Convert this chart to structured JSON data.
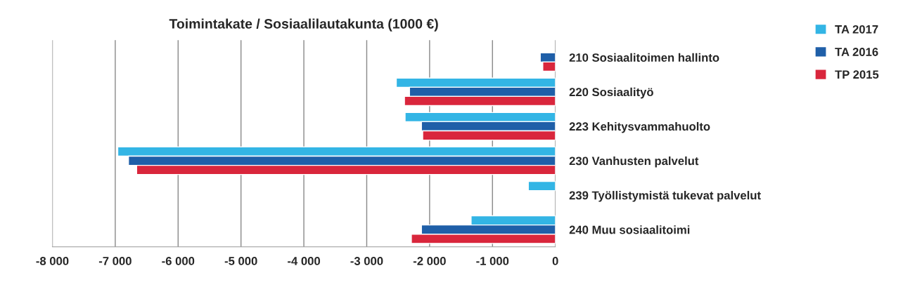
{
  "chart_data": {
    "type": "bar",
    "orientation": "horizontal",
    "title": "Toimintakate / Sosiaalilautakunta (1000 €)",
    "categories": [
      "210 Sosiaalitoimen hallinto",
      "220 Sosiaalityö",
      "223 Kehitysvammahuolto",
      "230 Vanhusten palvelut",
      "239 Työllistymistä tukevat palvelut",
      "240 Muu sosiaalitoimi"
    ],
    "series": [
      {
        "name": "TA 2017",
        "color": "#33b5e5",
        "values": [
          null,
          -2530,
          -2390,
          -6960,
          -430,
          -1340
        ]
      },
      {
        "name": "TA 2016",
        "color": "#1f5fa8",
        "values": [
          -240,
          -2320,
          -2130,
          -6790,
          null,
          -2130
        ]
      },
      {
        "name": "TP 2015",
        "color": "#d9263c",
        "values": [
          -200,
          -2400,
          -2110,
          -6660,
          null,
          -2290
        ]
      }
    ],
    "xlim": [
      -8000,
      0
    ],
    "xticks": [
      {
        "value": -8000,
        "label": "-8 000"
      },
      {
        "value": -7000,
        "label": "-7 000"
      },
      {
        "value": -6000,
        "label": "-6 000"
      },
      {
        "value": -5000,
        "label": "-5 000"
      },
      {
        "value": -4000,
        "label": "-4 000"
      },
      {
        "value": -3000,
        "label": "-3 000"
      },
      {
        "value": -2000,
        "label": "-2 000"
      },
      {
        "value": -1000,
        "label": "-1 000"
      },
      0
    ],
    "grid": "x",
    "legend": "top right"
  }
}
